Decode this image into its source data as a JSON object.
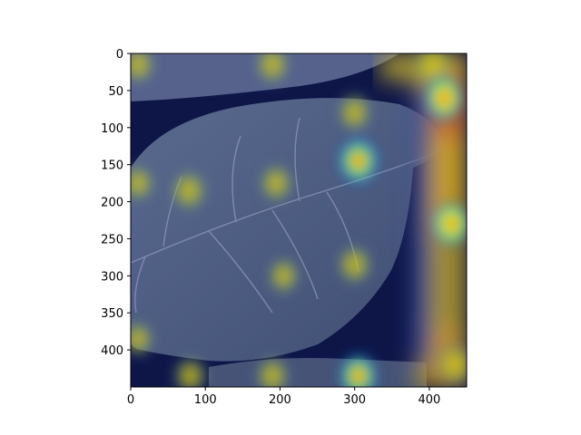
{
  "figure": {
    "image_description_icon": "leaf-gradcam-heatmap-overlay",
    "colormap": "jet",
    "overlay_alpha": 0.45,
    "background_color": "#ffffff"
  },
  "axes": {
    "xlim": [
      0,
      450
    ],
    "ylim_inverted": [
      450,
      0
    ],
    "x_ticks": [
      0,
      100,
      200,
      300,
      400
    ],
    "y_ticks": [
      0,
      50,
      100,
      150,
      200,
      250,
      300,
      350,
      400
    ],
    "x_tick_labels": [
      "0",
      "100",
      "200",
      "300",
      "400"
    ],
    "y_tick_labels": [
      "0",
      "50",
      "100",
      "150",
      "200",
      "250",
      "300",
      "350",
      "400"
    ]
  },
  "heatmap_hotspots": [
    {
      "x": 10,
      "y": 15,
      "intensity": 0.6
    },
    {
      "x": 190,
      "y": 15,
      "intensity": 0.65
    },
    {
      "x": 300,
      "y": 80,
      "intensity": 0.6
    },
    {
      "x": 305,
      "y": 145,
      "intensity": 0.85
    },
    {
      "x": 78,
      "y": 185,
      "intensity": 0.7
    },
    {
      "x": 195,
      "y": 175,
      "intensity": 0.6
    },
    {
      "x": 10,
      "y": 175,
      "intensity": 0.5
    },
    {
      "x": 300,
      "y": 285,
      "intensity": 0.65
    },
    {
      "x": 205,
      "y": 300,
      "intensity": 0.5
    },
    {
      "x": 80,
      "y": 435,
      "intensity": 0.6
    },
    {
      "x": 190,
      "y": 435,
      "intensity": 0.6
    },
    {
      "x": 305,
      "y": 435,
      "intensity": 0.75
    },
    {
      "x": 10,
      "y": 385,
      "intensity": 0.45
    },
    {
      "x": 405,
      "y": 15,
      "intensity": 0.7
    },
    {
      "x": 420,
      "y": 60,
      "intensity": 0.85
    },
    {
      "x": 430,
      "y": 230,
      "intensity": 0.75
    },
    {
      "x": 435,
      "y": 420,
      "intensity": 0.7
    }
  ]
}
